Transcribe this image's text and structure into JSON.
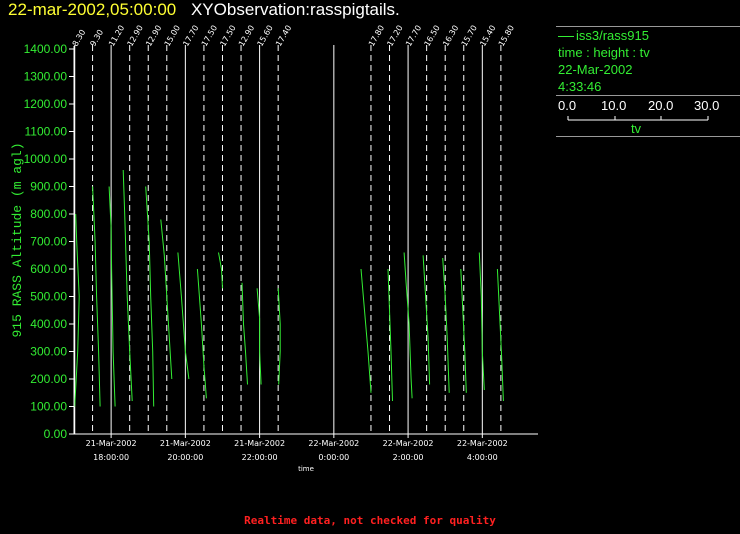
{
  "header": {
    "date": "22-mar-2002,05:00:00",
    "title": "XYObservation:rasspigtails."
  },
  "legend": {
    "series": "iss3/rass915",
    "line2": "time : height : tv",
    "line3": "22-Mar-2002",
    "line4": "4:33:46",
    "scale_ticks": [
      "0.0",
      "10.0",
      "20.0",
      "30.0"
    ],
    "scale_label": "tv"
  },
  "warning": "Realtime data, not checked for quality",
  "colors": {
    "background": "#000000",
    "data": "#33ee33",
    "axis": "#ffffff",
    "header_date": "#ffff33",
    "warning": "#ff2020"
  },
  "chart_data": {
    "type": "line",
    "ylabel": "915 RASS Altitude (m agl)",
    "xlabel": "time",
    "ylim": [
      0,
      1400
    ],
    "yticks": [
      "0.00",
      "100.00",
      "200.00",
      "300.00",
      "400.00",
      "500.00",
      "600.00",
      "700.00",
      "800.00",
      "900.00",
      "1000.00",
      "1100.00",
      "1200.00",
      "1300.00",
      "1400.00"
    ],
    "xlim_hours": [
      17.0,
      5.5
    ],
    "xticks": [
      {
        "h": 18,
        "date": "21-Mar-2002",
        "time": "18:00:00"
      },
      {
        "h": 20,
        "date": "21-Mar-2002",
        "time": "20:00:00"
      },
      {
        "h": 22,
        "date": "21-Mar-2002",
        "time": "22:00:00"
      },
      {
        "h": 24,
        "date": "22-Mar-2002",
        "time": "0:00:00"
      },
      {
        "h": 26,
        "date": "22-Mar-2002",
        "time": "2:00:00"
      },
      {
        "h": 28,
        "date": "22-Mar-2002",
        "time": "4:00:00"
      }
    ],
    "profiles": [
      {
        "t": 17.02,
        "label": "8.30",
        "baseline": "solid",
        "points": [
          [
            0.0,
            100
          ],
          [
            0.6,
            300
          ],
          [
            0.9,
            500
          ],
          [
            0.4,
            700
          ],
          [
            0.2,
            800
          ]
        ]
      },
      {
        "t": 17.5,
        "label": "9.30",
        "baseline": "dashed",
        "points": [
          [
            0.0,
            900
          ],
          [
            0.5,
            700
          ],
          [
            0.8,
            500
          ],
          [
            1.2,
            300
          ],
          [
            1.5,
            100
          ]
        ]
      },
      {
        "t": 18.0,
        "label": "11.20",
        "baseline": "solid",
        "points": [
          [
            -0.4,
            900
          ],
          [
            0.0,
            750
          ],
          [
            0.1,
            600
          ],
          [
            0.4,
            300
          ],
          [
            0.8,
            100
          ]
        ]
      },
      {
        "t": 18.5,
        "label": "12.90",
        "baseline": "dashed",
        "points": [
          [
            -1.3,
            960
          ],
          [
            -1.0,
            800
          ],
          [
            -0.5,
            500
          ],
          [
            0.0,
            300
          ],
          [
            0.5,
            120
          ]
        ]
      },
      {
        "t": 19.0,
        "label": "12.90",
        "baseline": "dashed",
        "points": [
          [
            -0.5,
            900
          ],
          [
            0.2,
            700
          ],
          [
            0.5,
            500
          ],
          [
            0.9,
            300
          ],
          [
            1.1,
            100
          ]
        ]
      },
      {
        "t": 19.5,
        "label": "15.00",
        "baseline": "dashed",
        "points": [
          [
            -1.2,
            780
          ],
          [
            -0.5,
            650
          ],
          [
            0.0,
            500
          ],
          [
            0.5,
            350
          ],
          [
            1.0,
            200
          ]
        ]
      },
      {
        "t": 20.0,
        "label": "17.70",
        "baseline": "solid",
        "points": [
          [
            -1.5,
            660
          ],
          [
            -0.8,
            500
          ],
          [
            0.0,
            300
          ],
          [
            0.7,
            200
          ]
        ]
      },
      {
        "t": 20.5,
        "label": "17.50",
        "baseline": "dashed",
        "points": [
          [
            -1.3,
            600
          ],
          [
            -0.5,
            400
          ],
          [
            0.0,
            250
          ],
          [
            0.5,
            130
          ]
        ]
      },
      {
        "t": 21.0,
        "label": "17.50",
        "baseline": "dashed",
        "points": [
          [
            -0.8,
            660
          ],
          [
            -0.2,
            600
          ],
          [
            0.0,
            530
          ]
        ]
      },
      {
        "t": 21.5,
        "label": "12.90",
        "baseline": "dashed",
        "points": [
          [
            0.2,
            550
          ],
          [
            0.5,
            400
          ],
          [
            0.9,
            300
          ],
          [
            1.3,
            180
          ]
        ]
      },
      {
        "t": 22.0,
        "label": "15.60",
        "baseline": "solid",
        "points": [
          [
            -0.5,
            530
          ],
          [
            0.0,
            420
          ],
          [
            0.0,
            300
          ],
          [
            0.3,
            180
          ]
        ]
      },
      {
        "t": 22.5,
        "label": "17.40",
        "baseline": "dashed",
        "points": [
          [
            0.0,
            530
          ],
          [
            0.4,
            400
          ],
          [
            0.4,
            300
          ],
          [
            0.1,
            180
          ]
        ]
      },
      {
        "t": 24.0,
        "label": "",
        "baseline": "solid",
        "points": []
      },
      {
        "t": 25.0,
        "label": "17.80",
        "baseline": "dashed",
        "points": [
          [
            -2.0,
            600
          ],
          [
            -1.3,
            450
          ],
          [
            -0.6,
            300
          ],
          [
            0.0,
            150
          ]
        ]
      },
      {
        "t": 25.5,
        "label": "17.20",
        "baseline": "dashed",
        "points": [
          [
            -0.3,
            600
          ],
          [
            0.0,
            450
          ],
          [
            0.3,
            300
          ],
          [
            0.6,
            120
          ]
        ]
      },
      {
        "t": 26.0,
        "label": "17.70",
        "baseline": "solid",
        "points": [
          [
            -0.8,
            660
          ],
          [
            -0.4,
            550
          ],
          [
            0.2,
            400
          ],
          [
            0.6,
            200
          ],
          [
            0.8,
            130
          ]
        ]
      },
      {
        "t": 26.5,
        "label": "16.50",
        "baseline": "dashed",
        "points": [
          [
            -0.7,
            650
          ],
          [
            -0.2,
            500
          ],
          [
            0.3,
            350
          ],
          [
            0.6,
            180
          ]
        ]
      },
      {
        "t": 27.0,
        "label": "16.30",
        "baseline": "dashed",
        "points": [
          [
            -0.5,
            640
          ],
          [
            0.0,
            500
          ],
          [
            0.4,
            350
          ],
          [
            0.8,
            150
          ]
        ]
      },
      {
        "t": 27.5,
        "label": "15.70",
        "baseline": "dashed",
        "points": [
          [
            -0.6,
            600
          ],
          [
            -0.2,
            450
          ],
          [
            0.2,
            300
          ],
          [
            0.5,
            150
          ]
        ]
      },
      {
        "t": 28.0,
        "label": "15.40",
        "baseline": "solid",
        "points": [
          [
            -0.6,
            660
          ],
          [
            -0.2,
            500
          ],
          [
            0.0,
            300
          ],
          [
            0.4,
            160
          ]
        ]
      },
      {
        "t": 28.5,
        "label": "15.80",
        "baseline": "dashed",
        "points": [
          [
            -0.7,
            600
          ],
          [
            -0.3,
            450
          ],
          [
            0.1,
            300
          ],
          [
            0.5,
            120
          ]
        ]
      }
    ]
  }
}
